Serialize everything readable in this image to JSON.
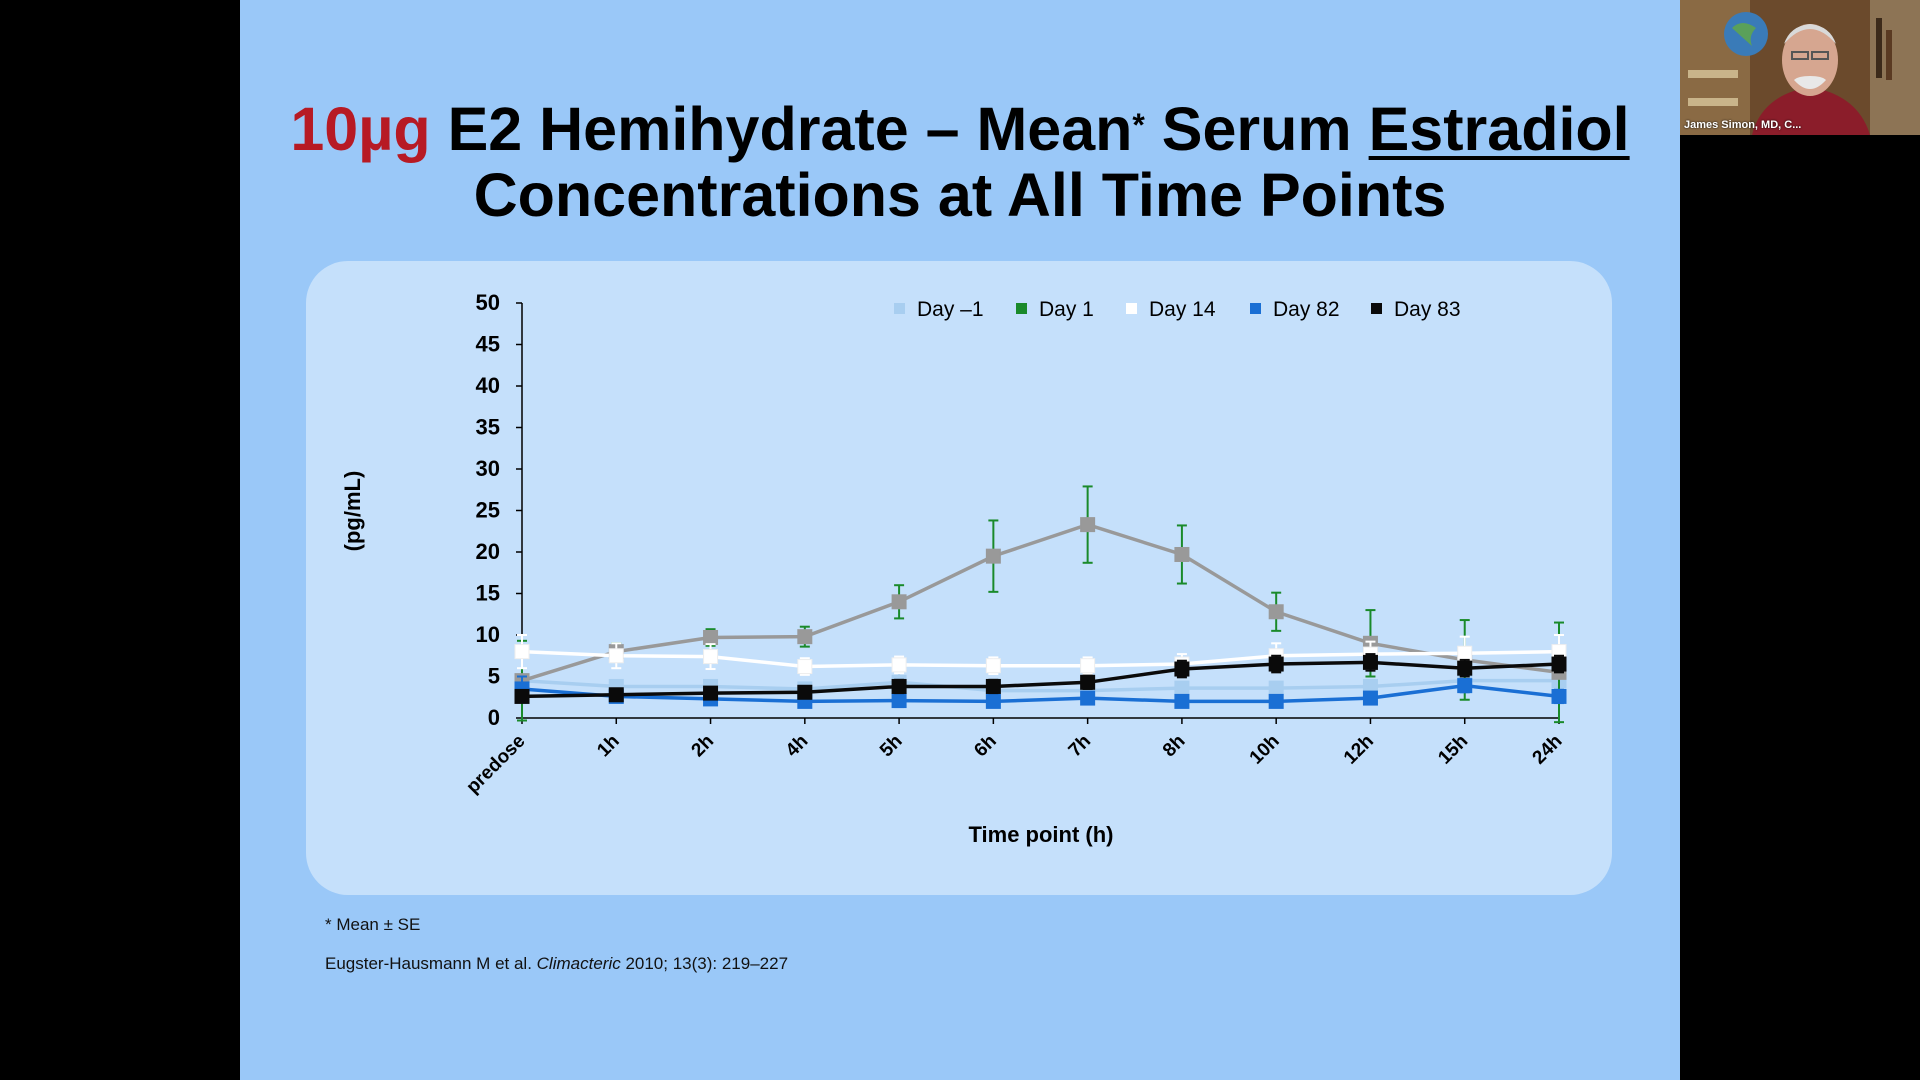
{
  "slide": {
    "title_accent": "10µg",
    "title_part1": " E2 Hemihydrate – Mean",
    "title_sup": "*",
    "title_part2": " Serum ",
    "title_underlined": "Estradiol",
    "title_line2": "Concentrations at All Time Points",
    "footnote": "* Mean ± SE",
    "citation_authors": "Eugster-Hausmann M et al. ",
    "citation_journal": "Climacteric",
    "citation_rest": " 2010; 13(3): 219–227",
    "background_color": "#9ac8f8",
    "accent_color": "#b71a24"
  },
  "webcam": {
    "participant_name": "James Simon, MD, C..."
  },
  "chart_data": {
    "type": "line",
    "title": "",
    "xlabel": "Time point (h)",
    "ylabel": "(pg/mL)",
    "ylim": [
      0,
      50
    ],
    "yticks": [
      0,
      5,
      10,
      15,
      20,
      25,
      30,
      35,
      40,
      45,
      50
    ],
    "grid": false,
    "legend_position": "top-right",
    "x": [
      "predose",
      "1h",
      "2h",
      "4h",
      "5h",
      "6h",
      "7h",
      "8h",
      "10h",
      "12h",
      "15h",
      "24h"
    ],
    "series": [
      {
        "name": "Day –1",
        "color": "#a8cef0",
        "values": [
          4.5,
          3.8,
          3.8,
          3.5,
          4.3,
          3.3,
          3.3,
          3.6,
          3.6,
          3.8,
          4.5,
          4.5
        ],
        "errors": [
          0.8,
          0.6,
          0.6,
          0.6,
          3.0,
          0.6,
          0.6,
          0.6,
          0.6,
          0.6,
          0.8,
          0.8
        ]
      },
      {
        "name": "Day 1",
        "color": "#999999",
        "error_color": "#1a8a2a",
        "values": [
          4.5,
          8.0,
          9.7,
          9.8,
          14.0,
          19.5,
          23.3,
          19.7,
          12.8,
          9.0,
          7.0,
          5.5
        ],
        "errors": [
          4.8,
          1.0,
          1.0,
          1.2,
          2.0,
          4.3,
          4.6,
          3.5,
          2.3,
          4.0,
          4.8,
          6.0
        ]
      },
      {
        "name": "Day 14",
        "color": "#ffffff",
        "values": [
          8.0,
          7.5,
          7.4,
          6.2,
          6.4,
          6.3,
          6.3,
          6.5,
          7.5,
          7.7,
          7.8,
          8.0
        ],
        "errors": [
          2.0,
          1.5,
          1.5,
          1.0,
          1.0,
          1.0,
          1.0,
          1.2,
          1.5,
          1.5,
          2.0,
          2.0
        ]
      },
      {
        "name": "Day 82",
        "color": "#1a6fd4",
        "values": [
          3.5,
          2.6,
          2.3,
          2.0,
          2.1,
          2.0,
          2.4,
          2.0,
          2.0,
          2.4,
          3.9,
          2.6
        ],
        "errors": [
          1.5,
          0.6,
          0.6,
          0.5,
          0.5,
          0.5,
          0.6,
          0.5,
          0.5,
          0.5,
          0.8,
          0.8
        ]
      },
      {
        "name": "Day 83",
        "color": "#0a0a0a",
        "values": [
          2.6,
          2.8,
          3.0,
          3.1,
          3.8,
          3.8,
          4.3,
          5.9,
          6.5,
          6.7,
          6.0,
          6.5
        ],
        "errors": [
          0.6,
          0.6,
          0.6,
          0.6,
          0.8,
          0.8,
          0.8,
          1.0,
          1.0,
          1.0,
          1.0,
          1.0
        ]
      }
    ]
  }
}
